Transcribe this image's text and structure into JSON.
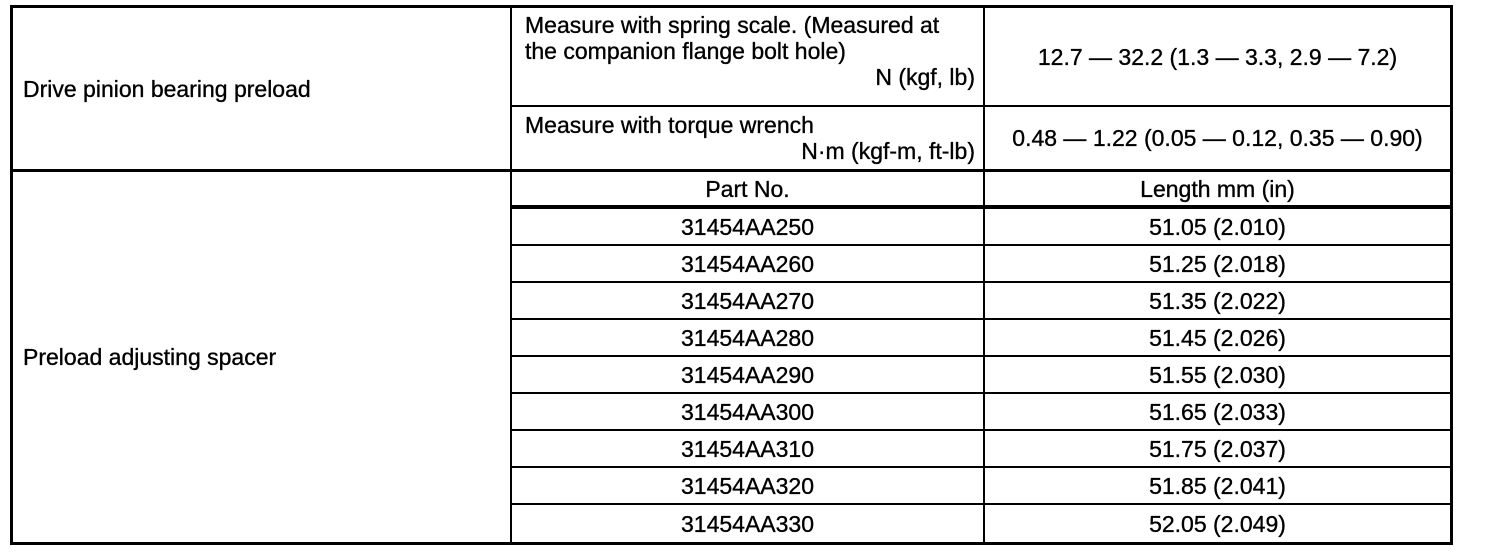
{
  "table": {
    "section1": {
      "label": "Drive pinion bearing preload",
      "rows": [
        {
          "lines": [
            "Measure with spring scale. (Measured at",
            "the companion flange bolt hole)"
          ],
          "unit": "N (kgf, lb)",
          "value": "12.7 — 32.2 (1.3 — 3.3, 2.9 — 7.2)"
        },
        {
          "lines": [
            "Measure with torque wrench"
          ],
          "unit": "N·m (kgf-m, ft-lb)",
          "value": "0.48 — 1.22 (0.05 — 0.12, 0.35 — 0.90)"
        }
      ]
    },
    "section2": {
      "label": "Preload adjusting spacer",
      "headers": {
        "part_no": "Part No.",
        "length": "Length mm (in)"
      },
      "rows": [
        {
          "part_no": "31454AA250",
          "length": "51.05 (2.010)"
        },
        {
          "part_no": "31454AA260",
          "length": "51.25 (2.018)"
        },
        {
          "part_no": "31454AA270",
          "length": "51.35 (2.022)"
        },
        {
          "part_no": "31454AA280",
          "length": "51.45 (2.026)"
        },
        {
          "part_no": "31454AA290",
          "length": "51.55 (2.030)"
        },
        {
          "part_no": "31454AA300",
          "length": "51.65 (2.033)"
        },
        {
          "part_no": "31454AA310",
          "length": "51.75 (2.037)"
        },
        {
          "part_no": "31454AA320",
          "length": "51.85 (2.041)"
        },
        {
          "part_no": "31454AA330",
          "length": "52.05 (2.049)"
        }
      ]
    },
    "colors": {
      "border": "#000000",
      "background": "#ffffff",
      "text": "#000000"
    }
  }
}
